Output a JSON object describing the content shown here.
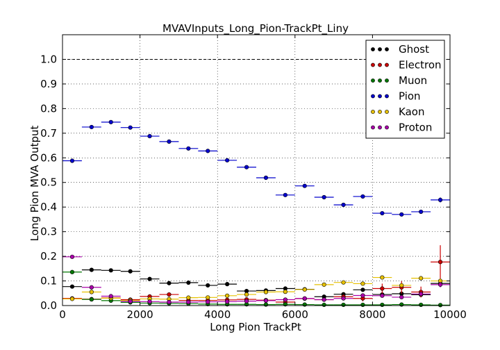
{
  "chart_data": {
    "type": "scatter",
    "title": "MVAVInputs_Long_Pion-TrackPt_Liny",
    "xlabel": "Long Pion TrackPt",
    "ylabel": "Long Pion MVA Output",
    "xlim": [
      0,
      10000
    ],
    "ylim": [
      0,
      1.1
    ],
    "x_ticks": [
      "0",
      "2000",
      "4000",
      "6000",
      "8000",
      "10000"
    ],
    "y_ticks": [
      "0.0",
      "0.1",
      "0.2",
      "0.3",
      "0.4",
      "0.5",
      "0.6",
      "0.7",
      "0.8",
      "0.9",
      "1.0"
    ],
    "grid": true,
    "reference_line_y": 1.0,
    "legend_position": "top-right",
    "bin_half_width": 250,
    "x": [
      250,
      750,
      1250,
      1750,
      2250,
      2750,
      3250,
      3750,
      4250,
      4750,
      5250,
      5750,
      6250,
      6750,
      7250,
      7750,
      8250,
      8750,
      9250,
      9750
    ],
    "series": [
      {
        "name": "Ghost",
        "color": "#000000",
        "values": [
          0.077,
          0.145,
          0.143,
          0.139,
          0.108,
          0.091,
          0.093,
          0.082,
          0.087,
          0.059,
          0.061,
          0.069,
          0.066,
          0.036,
          0.046,
          0.064,
          0.045,
          0.048,
          0.044,
          0.09
        ],
        "errors": [
          0.003,
          0.003,
          0.003,
          0.003,
          0.003,
          0.003,
          0.003,
          0.003,
          0.003,
          0.003,
          0.003,
          0.003,
          0.004,
          0.004,
          0.004,
          0.005,
          0.006,
          0.006,
          0.007,
          0.008
        ]
      },
      {
        "name": "Electron",
        "color": "#cc0000",
        "values": [
          0.029,
          0.026,
          0.031,
          0.024,
          0.037,
          0.045,
          0.021,
          0.021,
          0.023,
          0.025,
          0.022,
          0.014,
          0.028,
          0.024,
          0.036,
          0.029,
          0.069,
          0.074,
          0.055,
          0.177
        ],
        "errors": [
          0.002,
          0.002,
          0.002,
          0.002,
          0.003,
          0.004,
          0.003,
          0.004,
          0.004,
          0.005,
          0.005,
          0.005,
          0.007,
          0.008,
          0.01,
          0.012,
          0.02,
          0.025,
          0.022,
          0.068
        ]
      },
      {
        "name": "Muon",
        "color": "#007700",
        "values": [
          0.136,
          0.025,
          0.02,
          0.013,
          0.01,
          0.009,
          0.008,
          0.006,
          0.005,
          0.005,
          0.004,
          0.005,
          0.004,
          0.003,
          0.003,
          0.003,
          0.003,
          0.004,
          0.003,
          0.002
        ],
        "errors": [
          0.004,
          0.002,
          0.002,
          0.002,
          0.001,
          0.001,
          0.001,
          0.001,
          0.001,
          0.001,
          0.001,
          0.001,
          0.001,
          0.001,
          0.001,
          0.001,
          0.001,
          0.001,
          0.001,
          0.001
        ]
      },
      {
        "name": "Pion",
        "color": "#0000cc",
        "values": [
          0.588,
          0.725,
          0.745,
          0.723,
          0.688,
          0.666,
          0.638,
          0.628,
          0.59,
          0.562,
          0.519,
          0.449,
          0.486,
          0.44,
          0.409,
          0.443,
          0.375,
          0.37,
          0.381,
          0.429
        ],
        "errors": [
          0.003,
          0.003,
          0.003,
          0.003,
          0.003,
          0.003,
          0.003,
          0.004,
          0.004,
          0.004,
          0.005,
          0.005,
          0.006,
          0.006,
          0.006,
          0.007,
          0.007,
          0.008,
          0.008,
          0.01
        ]
      },
      {
        "name": "Kaon",
        "color": "#e6c000",
        "values": [
          0.027,
          0.055,
          0.03,
          0.021,
          0.027,
          0.026,
          0.032,
          0.033,
          0.04,
          0.045,
          0.055,
          0.056,
          0.065,
          0.085,
          0.094,
          0.089,
          0.114,
          0.082,
          0.111,
          0.1
        ],
        "errors": [
          0.002,
          0.002,
          0.002,
          0.002,
          0.002,
          0.002,
          0.002,
          0.003,
          0.003,
          0.003,
          0.004,
          0.004,
          0.005,
          0.005,
          0.006,
          0.006,
          0.007,
          0.008,
          0.008,
          0.01
        ]
      },
      {
        "name": "Proton",
        "color": "#aa00aa",
        "values": [
          0.198,
          0.074,
          0.038,
          0.017,
          0.016,
          0.014,
          0.014,
          0.015,
          0.016,
          0.018,
          0.02,
          0.024,
          0.029,
          0.024,
          0.029,
          0.041,
          0.04,
          0.034,
          0.047,
          0.085
        ],
        "errors": [
          0.003,
          0.002,
          0.002,
          0.001,
          0.001,
          0.001,
          0.001,
          0.002,
          0.002,
          0.002,
          0.003,
          0.003,
          0.004,
          0.004,
          0.005,
          0.006,
          0.007,
          0.008,
          0.009,
          0.011
        ]
      }
    ]
  }
}
